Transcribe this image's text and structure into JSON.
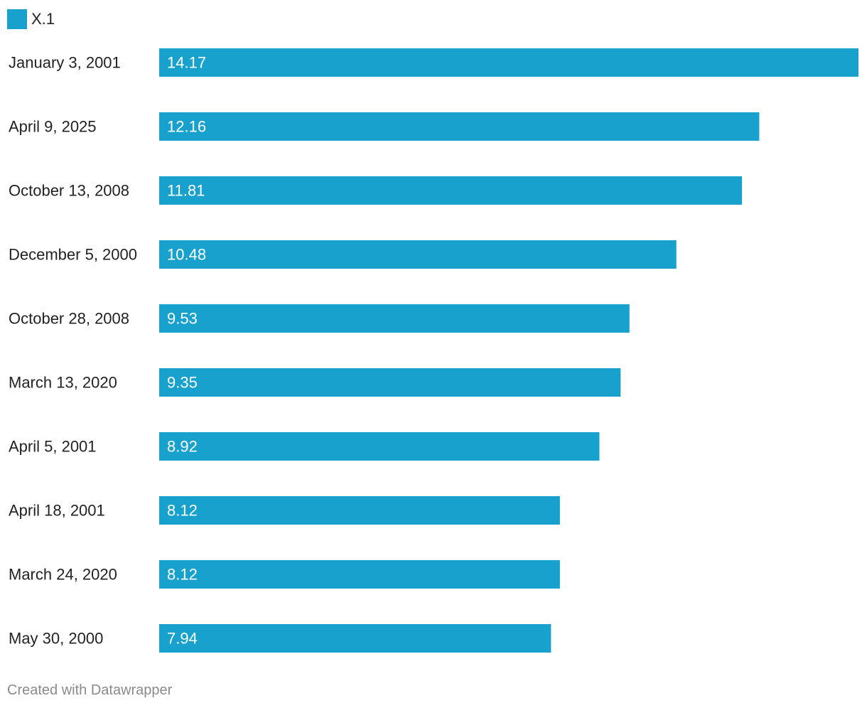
{
  "legend": {
    "label": "X.1",
    "color": "#18a1cd"
  },
  "chart_data": {
    "type": "bar",
    "orientation": "horizontal",
    "categories": [
      "January 3, 2001",
      "April 9, 2025",
      "October 13, 2008",
      "December 5, 2000",
      "October 28, 2008",
      "March 13, 2020",
      "April 5, 2001",
      "April 18, 2001",
      "March 24, 2020",
      "May 30, 2000"
    ],
    "series": [
      {
        "name": "X.1",
        "color": "#18a1cd",
        "values": [
          14.17,
          12.16,
          11.81,
          10.48,
          9.53,
          9.35,
          8.92,
          8.12,
          8.12,
          7.94
        ],
        "value_labels": [
          "14.17",
          "12.16",
          "11.81",
          "10.48",
          "9.53",
          "9.35",
          "8.92",
          "8.12",
          "8.12",
          "7.94"
        ]
      }
    ],
    "xlim": [
      0,
      14.17
    ],
    "title": "",
    "xlabel": "",
    "ylabel": "",
    "grid": false,
    "legend_position": "top-left"
  },
  "footer": {
    "credit": "Created with Datawrapper"
  }
}
